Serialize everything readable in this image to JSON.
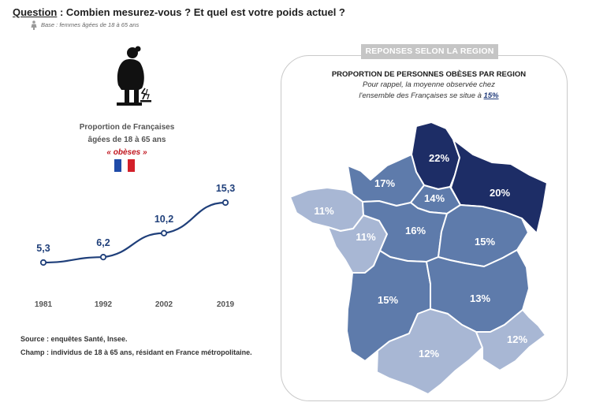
{
  "header": {
    "question_label": "Question",
    "question_text": " : Combien mesurez-vous ? Et quel est votre poids actuel ?",
    "base": "Base : femmes âgées de 18 à 65 ans"
  },
  "left_panel": {
    "proportion_line1": "Proportion de Françaises",
    "proportion_line2": "âgées de 18 à 65 ans",
    "proportion_line3": "« obèses »",
    "source_line1": "Source : enquêtes Santé, Insee.",
    "source_line2": "Champ : individus de 18 à 65 ans, résidant en France métropolitaine."
  },
  "colors": {
    "line": "#1f3f7a",
    "flag_blue": "#1f4aa8",
    "flag_white": "#ffffff",
    "flag_red": "#d3202a",
    "dark": "#1d2d66",
    "medium": "#5e7bab",
    "light": "#a8b7d4"
  },
  "chart_data": [
    {
      "type": "line",
      "x": [
        "1981",
        "1992",
        "2002",
        "2019"
      ],
      "series": [
        {
          "values": [
            5.3,
            6.2,
            10.2,
            15.3
          ]
        }
      ],
      "value_labels": [
        "5,3",
        "6,2",
        "10,2",
        "15,3"
      ],
      "title": "",
      "xlabel": "",
      "ylabel": "",
      "grid": false
    },
    {
      "type": "map",
      "title": "PROPORTION DE PERSONNES OBÈSES PAR REGION",
      "subtitle_line1": "Pour rappel, la moyenne observée chez",
      "subtitle_line2": "l'ensemble des Françaises se situe à ",
      "national_average": "15%",
      "panel_tag": "REPONSES SELON  LA REGION",
      "regions": [
        {
          "value": 22,
          "label": "22%",
          "shade": "dark"
        },
        {
          "value": 20,
          "label": "20%",
          "shade": "dark"
        },
        {
          "value": 17,
          "label": "17%",
          "shade": "medium"
        },
        {
          "value": 14,
          "label": "14%",
          "shade": "medium"
        },
        {
          "value": 11,
          "label": "11%",
          "shade": "light"
        },
        {
          "value": 11,
          "label": "11%",
          "shade": "light"
        },
        {
          "value": 16,
          "label": "16%",
          "shade": "medium"
        },
        {
          "value": 15,
          "label": "15%",
          "shade": "medium"
        },
        {
          "value": 15,
          "label": "15%",
          "shade": "medium"
        },
        {
          "value": 13,
          "label": "13%",
          "shade": "medium"
        },
        {
          "value": 12,
          "label": "12%",
          "shade": "light"
        },
        {
          "value": 12,
          "label": "12%",
          "shade": "light"
        }
      ]
    }
  ]
}
